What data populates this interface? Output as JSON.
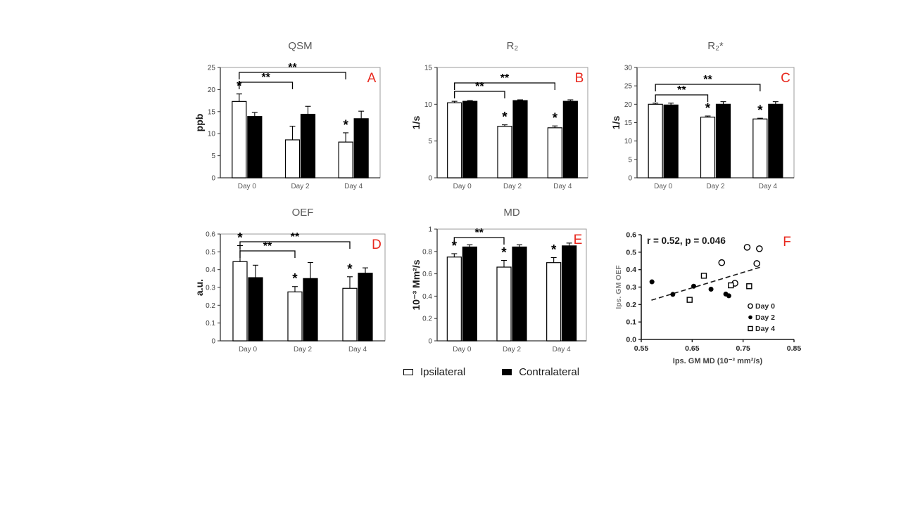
{
  "figure": {
    "colors": {
      "panel_label": "#e8281e",
      "ipsilateral_fill": "#ffffff",
      "contralateral_fill": "#000000",
      "title_gray": "#595959"
    },
    "legend": {
      "items": [
        {
          "label": "Ipsilateral",
          "fill": "#ffffff"
        },
        {
          "label": "Contralateral",
          "fill": "#000000"
        }
      ]
    }
  },
  "chart_data": [
    {
      "panel": "A",
      "type": "bar",
      "title": "QSM",
      "ylabel": "ppb",
      "ylim": [
        0,
        25
      ],
      "yticks": [
        [
          0,
          "0"
        ],
        [
          5,
          "5"
        ],
        [
          10,
          "10"
        ],
        [
          15,
          "15"
        ],
        [
          20,
          "20"
        ],
        [
          25,
          "25"
        ]
      ],
      "categories": [
        "Day 0",
        "Day 2",
        "Day 4"
      ],
      "series": [
        {
          "name": "Ipsilateral",
          "fill": "#ffffff",
          "values": [
            17.3,
            8.6,
            8.1
          ],
          "errors": [
            1.7,
            3.1,
            2.1
          ]
        },
        {
          "name": "Contralateral",
          "fill": "#000000",
          "values": [
            13.9,
            14.4,
            13.4
          ],
          "errors": [
            0.9,
            1.8,
            1.7
          ]
        }
      ],
      "star_symbol": "*",
      "stars": [
        {
          "series": 0,
          "category": 0
        },
        {
          "series": 0,
          "category": 2
        }
      ],
      "brackets": [
        {
          "from": 0,
          "to": 1,
          "label": "**",
          "level": 0
        },
        {
          "from": 0,
          "to": 2,
          "label": "**",
          "level": 1
        }
      ]
    },
    {
      "panel": "B",
      "type": "bar",
      "title": "R₂",
      "ylabel": "1/s",
      "ylim": [
        0,
        15
      ],
      "yticks": [
        [
          0,
          "0"
        ],
        [
          5,
          "5"
        ],
        [
          10,
          "10"
        ],
        [
          15,
          "15"
        ]
      ],
      "categories": [
        "Day 0",
        "Day 2",
        "Day 4"
      ],
      "series": [
        {
          "name": "Ipsilateral",
          "fill": "#ffffff",
          "values": [
            10.2,
            7.0,
            6.8
          ],
          "errors": [
            0.2,
            0.2,
            0.25
          ]
        },
        {
          "name": "Contralateral",
          "fill": "#000000",
          "values": [
            10.4,
            10.5,
            10.4
          ],
          "errors": [
            0.1,
            0.1,
            0.2
          ]
        }
      ],
      "star_symbol": "*",
      "stars": [
        {
          "series": 0,
          "category": 1
        },
        {
          "series": 0,
          "category": 2
        }
      ],
      "brackets": [
        {
          "from": 0,
          "to": 1,
          "label": "**",
          "level": 0
        },
        {
          "from": 0,
          "to": 2,
          "label": "**",
          "level": 1
        }
      ]
    },
    {
      "panel": "C",
      "type": "bar",
      "title": "R₂*",
      "ylabel": "1/s",
      "ylim": [
        0,
        30
      ],
      "yticks": [
        [
          0,
          "0"
        ],
        [
          5,
          "5"
        ],
        [
          10,
          "10"
        ],
        [
          15,
          "15"
        ],
        [
          20,
          "20"
        ],
        [
          25,
          "25"
        ],
        [
          30,
          "30"
        ]
      ],
      "categories": [
        "Day 0",
        "Day 2",
        "Day 4"
      ],
      "series": [
        {
          "name": "Ipsilateral",
          "fill": "#ffffff",
          "values": [
            20.0,
            16.5,
            16.0
          ],
          "errors": [
            0.3,
            0.3,
            0.2
          ]
        },
        {
          "name": "Contralateral",
          "fill": "#000000",
          "values": [
            19.8,
            20.0,
            20.0
          ],
          "errors": [
            0.5,
            0.7,
            0.7
          ]
        }
      ],
      "star_symbol": "*",
      "stars": [
        {
          "series": 0,
          "category": 1
        },
        {
          "series": 0,
          "category": 2
        }
      ],
      "brackets": [
        {
          "from": 0,
          "to": 1,
          "label": "**",
          "level": 0
        },
        {
          "from": 0,
          "to": 2,
          "label": "**",
          "level": 1
        }
      ]
    },
    {
      "panel": "D",
      "type": "bar",
      "title": "OEF",
      "ylabel": "a.u.",
      "ylim": [
        0,
        0.6
      ],
      "yticks": [
        [
          0,
          "0"
        ],
        [
          0.1,
          "0.1"
        ],
        [
          0.2,
          "0.2"
        ],
        [
          0.3,
          "0.3"
        ],
        [
          0.4,
          "0.4"
        ],
        [
          0.5,
          "0.5"
        ],
        [
          0.6,
          "0.6"
        ]
      ],
      "categories": [
        "Day 0",
        "Day 2",
        "Day 4"
      ],
      "series": [
        {
          "name": "Ipsilateral",
          "fill": "#ffffff",
          "values": [
            0.445,
            0.275,
            0.295
          ],
          "errors": [
            0.09,
            0.03,
            0.065
          ]
        },
        {
          "name": "Contralateral",
          "fill": "#000000",
          "values": [
            0.355,
            0.35,
            0.38
          ],
          "errors": [
            0.07,
            0.09,
            0.03
          ]
        }
      ],
      "star_symbol": "*",
      "stars": [
        {
          "series": 0,
          "category": 0
        },
        {
          "series": 0,
          "category": 1
        },
        {
          "series": 0,
          "category": 2
        }
      ],
      "brackets": [
        {
          "from": 0,
          "to": 1,
          "label": "**",
          "level": 0
        },
        {
          "from": 0,
          "to": 2,
          "label": "**",
          "level": 1
        }
      ]
    },
    {
      "panel": "E",
      "type": "bar",
      "title": "MD",
      "ylabel": "10⁻³ Mm²/s",
      "ylim": [
        0,
        1
      ],
      "yticks": [
        [
          0,
          "0"
        ],
        [
          0.2,
          "0.2"
        ],
        [
          0.4,
          "0.4"
        ],
        [
          0.6,
          "0.6"
        ],
        [
          0.8,
          "0.8"
        ],
        [
          1,
          "1"
        ]
      ],
      "categories": [
        "Day 0",
        "Day 2",
        "Day 4"
      ],
      "series": [
        {
          "name": "Ipsilateral",
          "fill": "#ffffff",
          "values": [
            0.75,
            0.66,
            0.7
          ],
          "errors": [
            0.03,
            0.06,
            0.045
          ]
        },
        {
          "name": "Contralateral",
          "fill": "#000000",
          "values": [
            0.84,
            0.84,
            0.85
          ],
          "errors": [
            0.02,
            0.02,
            0.025
          ]
        }
      ],
      "star_symbol": "*",
      "stars": [
        {
          "series": 0,
          "category": 0
        },
        {
          "series": 0,
          "category": 1
        },
        {
          "series": 0,
          "category": 2
        }
      ],
      "brackets": [
        {
          "from": 0,
          "to": 1,
          "label": "**",
          "level": 1
        }
      ]
    },
    {
      "panel": "F",
      "type": "scatter",
      "annotation": "r = 0.52, p = 0.046",
      "xlabel": "Ips. GM MD (10⁻³ mm²/s)",
      "ylabel": "Ips. GM OEF",
      "xlim": [
        0.55,
        0.85
      ],
      "xticks": [
        [
          0.55,
          "0.55"
        ],
        [
          0.65,
          "0.65"
        ],
        [
          0.75,
          "0.75"
        ],
        [
          0.85,
          "0.85"
        ]
      ],
      "ylim": [
        0,
        0.6
      ],
      "yticks": [
        [
          0,
          "0.0"
        ],
        [
          0.1,
          "0.1"
        ],
        [
          0.2,
          "0.2"
        ],
        [
          0.3,
          "0.3"
        ],
        [
          0.4,
          "0.4"
        ],
        [
          0.5,
          "0.5"
        ],
        [
          0.6,
          "0.6"
        ]
      ],
      "trend": {
        "x1": 0.57,
        "y1": 0.225,
        "x2": 0.785,
        "y2": 0.415
      },
      "series": [
        {
          "name": "Day 0",
          "marker": "open-circle",
          "points": [
            [
              0.758,
              0.528
            ],
            [
              0.782,
              0.52
            ],
            [
              0.708,
              0.44
            ],
            [
              0.777,
              0.435
            ],
            [
              0.734,
              0.322
            ]
          ]
        },
        {
          "name": "Day 2",
          "marker": "filled-circle",
          "points": [
            [
              0.571,
              0.33
            ],
            [
              0.612,
              0.258
            ],
            [
              0.653,
              0.305
            ],
            [
              0.687,
              0.288
            ],
            [
              0.716,
              0.26
            ],
            [
              0.722,
              0.25
            ]
          ]
        },
        {
          "name": "Day 4",
          "marker": "open-square",
          "points": [
            [
              0.673,
              0.365
            ],
            [
              0.726,
              0.31
            ],
            [
              0.762,
              0.305
            ],
            [
              0.645,
              0.227
            ]
          ]
        }
      ]
    }
  ]
}
